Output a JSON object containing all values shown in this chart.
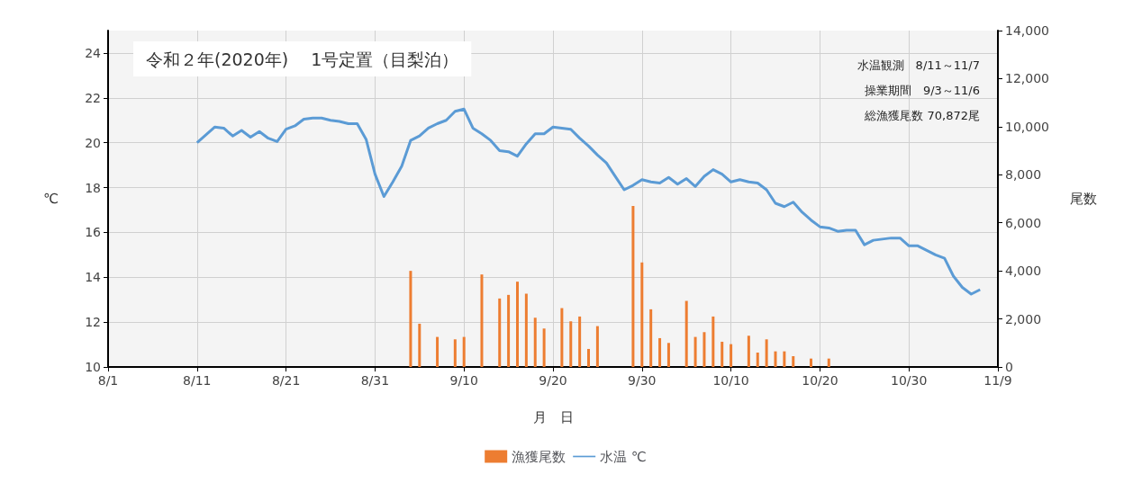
{
  "chart_data": {
    "type": "bar",
    "title": "令和２年(2020年)　 1号定置（目梨泊）",
    "annotations": [
      "水温観測　8/11～11/7",
      "操業期間　9/3～11/6",
      "総漁獲尾数 70,872尾"
    ],
    "xlabel": "月　日",
    "ylabel": "℃",
    "y2label": "尾数",
    "xlim": [
      "2020-08-01",
      "2020-11-09"
    ],
    "xticks": [
      {
        "value": "2020-08-01",
        "label": "8/1"
      },
      {
        "value": "2020-08-11",
        "label": "8/11"
      },
      {
        "value": "2020-08-21",
        "label": "8/21"
      },
      {
        "value": "2020-08-31",
        "label": "8/31"
      },
      {
        "value": "2020-09-10",
        "label": "9/10"
      },
      {
        "value": "2020-09-20",
        "label": "9/20"
      },
      {
        "value": "2020-09-30",
        "label": "9/30"
      },
      {
        "value": "2020-10-10",
        "label": "10/10"
      },
      {
        "value": "2020-10-20",
        "label": "10/20"
      },
      {
        "value": "2020-10-30",
        "label": "10/30"
      },
      {
        "value": "2020-11-09",
        "label": "11/9"
      }
    ],
    "ylim": [
      10,
      25
    ],
    "yticks": [
      10,
      12,
      14,
      16,
      18,
      20,
      22,
      24
    ],
    "y2lim": [
      0,
      14000
    ],
    "y2ticks": [
      0,
      {
        "value": 2000,
        "label": "2,000"
      },
      {
        "value": 4000,
        "label": "4,000"
      },
      {
        "value": 6000,
        "label": "6,000"
      },
      {
        "value": 8000,
        "label": "8,000"
      },
      {
        "value": 10000,
        "label": "10,000"
      },
      {
        "value": 12000,
        "label": "12,000"
      },
      {
        "value": 14000,
        "label": "14,000"
      }
    ],
    "grid": true,
    "legend": "bottom",
    "series": [
      {
        "name": "漁獲尾数",
        "axis": "y2",
        "color": "#ed7d31",
        "x": [
          "2020-09-04",
          "2020-09-05",
          "2020-09-07",
          "2020-09-09",
          "2020-09-10",
          "2020-09-12",
          "2020-09-14",
          "2020-09-15",
          "2020-09-16",
          "2020-09-17",
          "2020-09-18",
          "2020-09-19",
          "2020-09-21",
          "2020-09-22",
          "2020-09-23",
          "2020-09-24",
          "2020-09-25",
          "2020-09-29",
          "2020-09-30",
          "2020-10-01",
          "2020-10-02",
          "2020-10-03",
          "2020-10-05",
          "2020-10-06",
          "2020-10-07",
          "2020-10-08",
          "2020-10-09",
          "2020-10-10",
          "2020-10-12",
          "2020-10-13",
          "2020-10-14",
          "2020-10-15",
          "2020-10-16",
          "2020-10-17",
          "2020-10-19",
          "2020-10-21"
        ],
        "values": [
          4000,
          1800,
          1250,
          1150,
          1250,
          3850,
          2850,
          3000,
          3550,
          3050,
          2050,
          1600,
          2450,
          1900,
          2100,
          750,
          1700,
          6700,
          4350,
          2400,
          1200,
          1000,
          2750,
          1250,
          1450,
          2100,
          1050,
          950,
          1300,
          600,
          1150,
          650,
          650,
          450,
          350,
          350
        ]
      },
      {
        "name": "水温 ℃",
        "type": "line",
        "color": "#5b9bd5",
        "marker": "none",
        "x": [
          "2020-08-11",
          "2020-08-12",
          "2020-08-13",
          "2020-08-14",
          "2020-08-15",
          "2020-08-16",
          "2020-08-17",
          "2020-08-18",
          "2020-08-19",
          "2020-08-20",
          "2020-08-21",
          "2020-08-22",
          "2020-08-23",
          "2020-08-24",
          "2020-08-25",
          "2020-08-26",
          "2020-08-27",
          "2020-08-28",
          "2020-08-29",
          "2020-08-30",
          "2020-08-31",
          "2020-09-01",
          "2020-09-02",
          "2020-09-03",
          "2020-09-04",
          "2020-09-05",
          "2020-09-06",
          "2020-09-07",
          "2020-09-08",
          "2020-09-09",
          "2020-09-10",
          "2020-09-11",
          "2020-09-12",
          "2020-09-13",
          "2020-09-14",
          "2020-09-15",
          "2020-09-16",
          "2020-09-17",
          "2020-09-18",
          "2020-09-19",
          "2020-09-20",
          "2020-09-21",
          "2020-09-22",
          "2020-09-23",
          "2020-09-24",
          "2020-09-25",
          "2020-09-26",
          "2020-09-27",
          "2020-09-28",
          "2020-09-29",
          "2020-09-30",
          "2020-10-01",
          "2020-10-02",
          "2020-10-03",
          "2020-10-04",
          "2020-10-05",
          "2020-10-06",
          "2020-10-07",
          "2020-10-08",
          "2020-10-09",
          "2020-10-10",
          "2020-10-11",
          "2020-10-12",
          "2020-10-13",
          "2020-10-14",
          "2020-10-15",
          "2020-10-16",
          "2020-10-17",
          "2020-10-18",
          "2020-10-19",
          "2020-10-20",
          "2020-10-21",
          "2020-10-22",
          "2020-10-23",
          "2020-10-24",
          "2020-10-25",
          "2020-10-26",
          "2020-10-27",
          "2020-10-28",
          "2020-10-29",
          "2020-10-30",
          "2020-10-31",
          "2020-11-01",
          "2020-11-02",
          "2020-11-03",
          "2020-11-04",
          "2020-11-05",
          "2020-11-06",
          "2020-11-07"
        ],
        "values": [
          20.0,
          20.35,
          20.7,
          20.65,
          20.3,
          20.55,
          20.25,
          20.5,
          20.2,
          20.05,
          20.6,
          20.75,
          21.05,
          21.1,
          21.1,
          21.0,
          20.95,
          20.85,
          20.85,
          20.15,
          18.6,
          17.6,
          18.25,
          18.95,
          20.1,
          20.3,
          20.65,
          20.85,
          21.0,
          21.4,
          21.5,
          20.65,
          20.4,
          20.1,
          19.65,
          19.6,
          19.4,
          19.95,
          20.4,
          20.4,
          20.7,
          20.65,
          20.6,
          20.2,
          19.85,
          19.45,
          19.1,
          18.5,
          17.9,
          18.1,
          18.35,
          18.25,
          18.2,
          18.45,
          18.15,
          18.4,
          18.05,
          18.5,
          18.8,
          18.6,
          18.25,
          18.35,
          18.25,
          18.2,
          17.9,
          17.3,
          17.15,
          17.35,
          16.9,
          16.55,
          16.25,
          16.2,
          16.05,
          16.1,
          16.1,
          15.45,
          15.65,
          15.7,
          15.75,
          15.75,
          15.4,
          15.4,
          15.2,
          15.0,
          14.85,
          14.05,
          13.55,
          13.25,
          13.45
        ]
      }
    ]
  }
}
